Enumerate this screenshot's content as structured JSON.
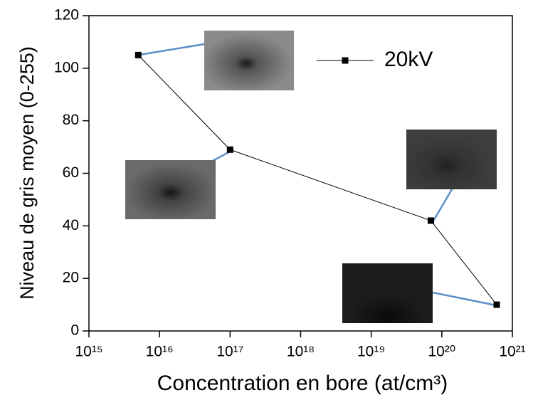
{
  "chart_data": {
    "type": "line",
    "x_label": "Concentration en bore (at/cm³)",
    "y_label": "Niveau de gris moyen (0-255)",
    "x_scale": "log",
    "x": [
      5000000000000000.0,
      1e+17,
      7e+19,
      6e+20
    ],
    "series": [
      {
        "name": "20kV",
        "color": "#000000",
        "values": [
          105,
          69,
          42,
          10
        ]
      }
    ],
    "xlim": [
      1000000000000000.0,
      1e+21
    ],
    "xticks": [
      {
        "value": 1000000000000000.0,
        "label": "10¹⁵"
      },
      {
        "value": 1e+16,
        "label": "10¹⁶"
      },
      {
        "value": 1e+17,
        "label": "10¹⁷"
      },
      {
        "value": 1e+18,
        "label": "10¹⁸"
      },
      {
        "value": 1e+19,
        "label": "10¹⁹"
      },
      {
        "value": 1e+20,
        "label": "10²⁰"
      },
      {
        "value": 1e+21,
        "label": "10²¹"
      }
    ],
    "ylim": [
      0,
      120
    ],
    "yticks": [
      0,
      20,
      40,
      60,
      80,
      100,
      120
    ],
    "legend": "top-right"
  }
}
